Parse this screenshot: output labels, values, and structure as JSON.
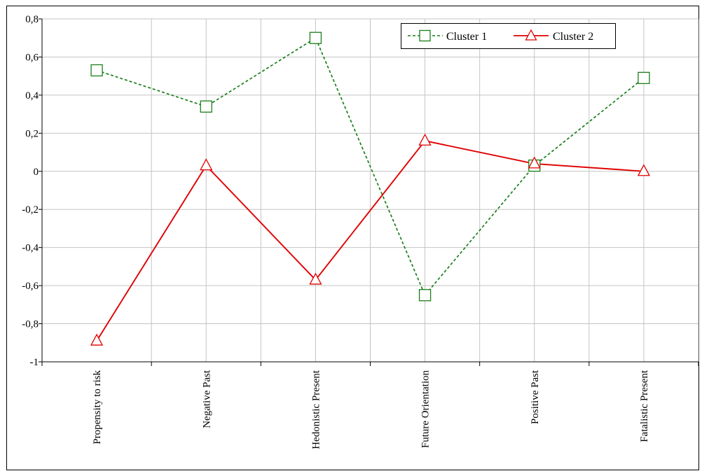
{
  "chart_data": {
    "type": "line",
    "title": "",
    "xlabel": "",
    "ylabel": "",
    "categories": [
      "Propensity to risk",
      "Negative Past",
      "Hedonistic Present",
      "Future Orientation",
      "Positive Past",
      "Fatalistic Present"
    ],
    "ylim": [
      -1,
      0.8
    ],
    "y_ticks": [
      0.8,
      0.6,
      0.4,
      0.2,
      0,
      -0.2,
      -0.4,
      -0.6,
      -0.8,
      -1
    ],
    "y_tick_labels": [
      "0,8",
      "0,6",
      "0,4",
      "0,2",
      "0",
      "-0,2",
      "-0,4",
      "-0,6",
      "-0,8",
      "-1"
    ],
    "grid": true,
    "legend_position": "top-right",
    "series": [
      {
        "name": "Cluster 1",
        "values": [
          0.53,
          0.34,
          0.7,
          -0.65,
          0.03,
          0.49
        ],
        "color": "#1a7f1a",
        "dash": "dashed",
        "marker": "square"
      },
      {
        "name": "Cluster 2",
        "values": [
          -0.89,
          0.03,
          -0.57,
          0.16,
          0.04,
          0.0
        ],
        "color": "#e00000",
        "dash": "solid",
        "marker": "triangle"
      }
    ]
  }
}
